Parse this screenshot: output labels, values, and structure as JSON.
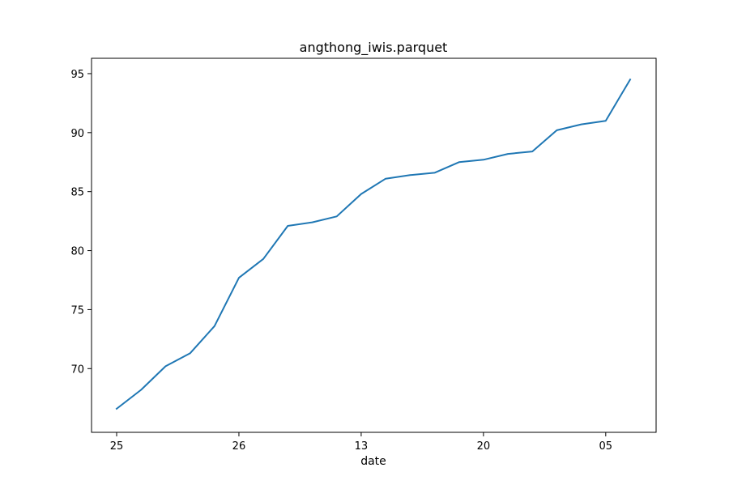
{
  "chart_data": {
    "type": "line",
    "title": "angthong_iwis.parquet",
    "xlabel": "date",
    "ylabel": "",
    "x_tick_labels": [
      "25",
      "26",
      "13",
      "20",
      "05"
    ],
    "y_ticks": [
      70,
      75,
      80,
      85,
      90,
      95
    ],
    "ylim": [
      64.6,
      96.3
    ],
    "grid": false,
    "legend": "none",
    "series": [
      {
        "color": "#1f77b4",
        "values": [
          66.6,
          68.2,
          70.2,
          71.3,
          73.6,
          77.7,
          79.3,
          82.1,
          82.4,
          82.9,
          84.8,
          86.1,
          86.4,
          86.6,
          87.5,
          87.7,
          88.2,
          88.4,
          90.2,
          90.7,
          91.0,
          94.5
        ]
      }
    ]
  }
}
